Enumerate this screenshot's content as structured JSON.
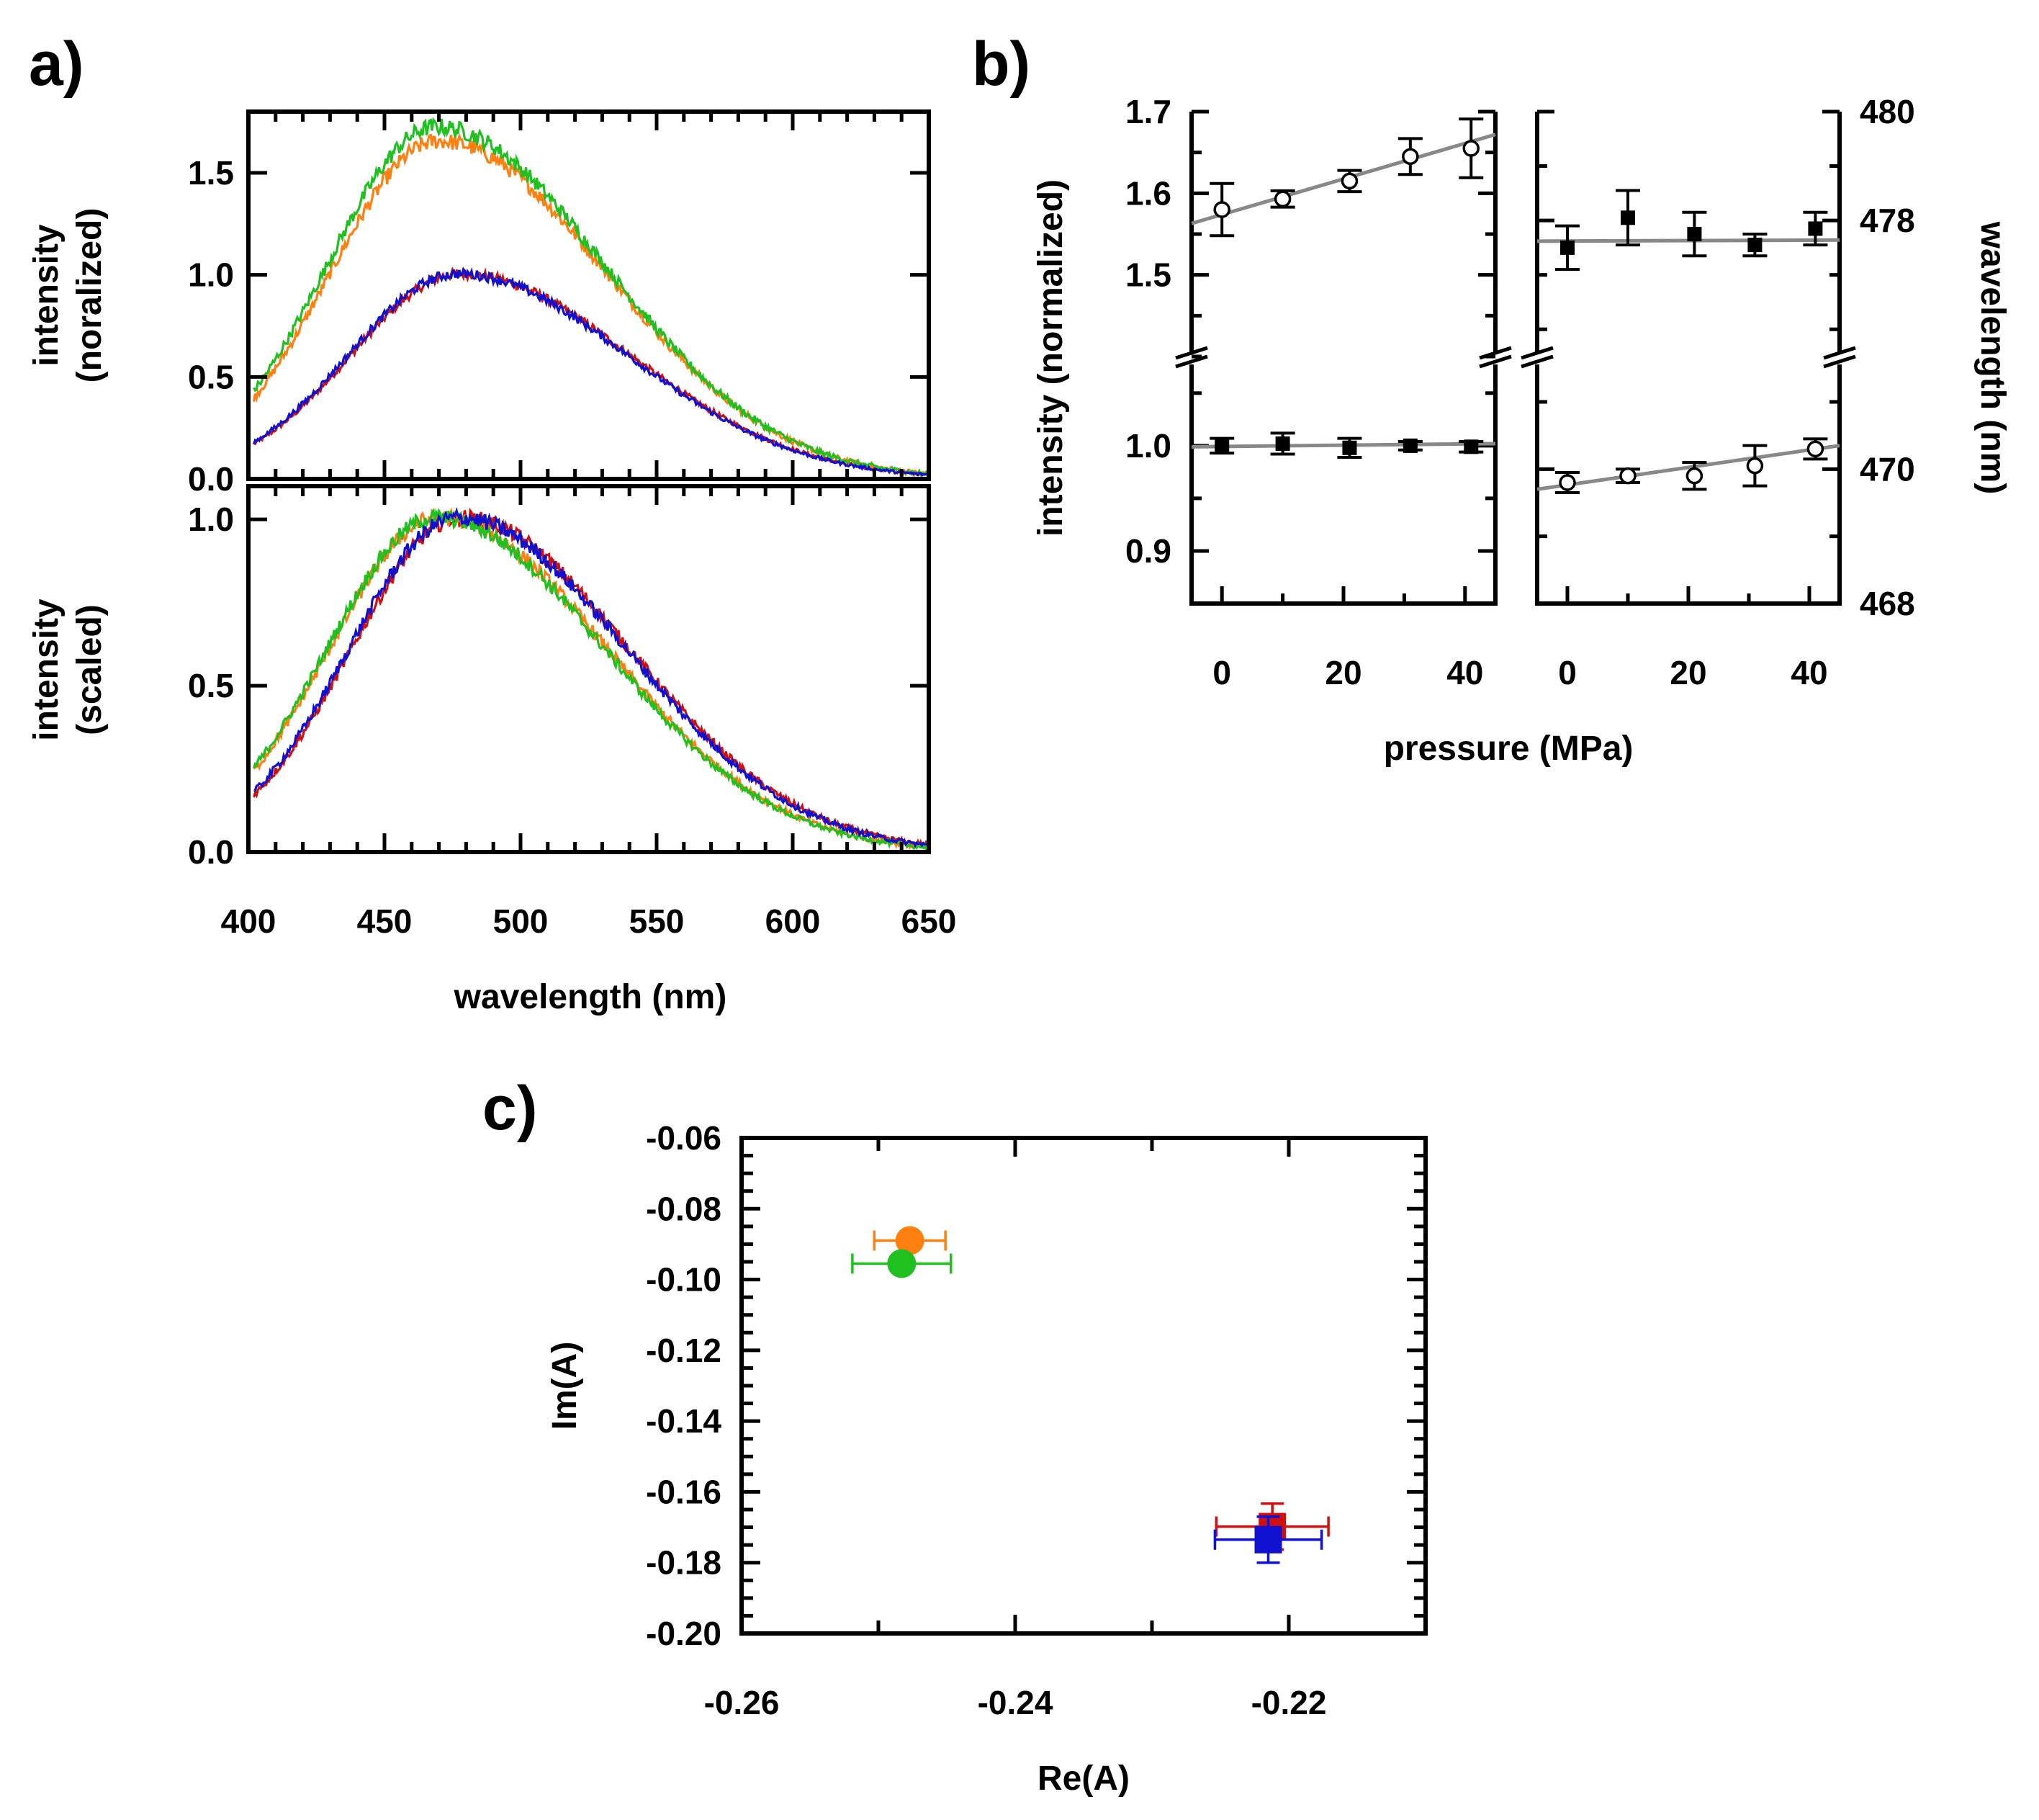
{
  "figure": {
    "panel_a_label": "a)",
    "panel_b_label": "b)",
    "panel_c_label": "c)"
  },
  "colors": {
    "red": "#d01010",
    "orange": "#ff8010",
    "green": "#20c020",
    "blue": "#1010d0",
    "fit": "#888888",
    "axis": "#000000"
  },
  "chart_data": [
    {
      "id": "a_top",
      "type": "line",
      "xlabel": "wavelength (nm)",
      "ylabel": [
        "intensity",
        "(noralized)"
      ],
      "xlim": [
        400,
        650
      ],
      "ylim": [
        0.0,
        1.8
      ],
      "xticks": [
        400,
        450,
        500,
        550,
        600,
        650
      ],
      "yticks": [
        "0.0",
        "0.5",
        "1.0",
        "1.5"
      ],
      "series": [
        {
          "name": "red",
          "color": "red",
          "peak_wavelength": 478,
          "peak_intensity": 1.0
        },
        {
          "name": "blue",
          "color": "blue",
          "peak_wavelength": 477,
          "peak_intensity": 1.0
        },
        {
          "name": "orange",
          "color": "orange",
          "peak_wavelength": 470,
          "peak_intensity": 1.65
        },
        {
          "name": "green",
          "color": "green",
          "peak_wavelength": 469,
          "peak_intensity": 1.72
        }
      ]
    },
    {
      "id": "a_bottom",
      "type": "line",
      "xlabel": "wavelength (nm)",
      "ylabel": [
        "intensity",
        "(scaled)"
      ],
      "xlim": [
        400,
        650
      ],
      "ylim": [
        0.0,
        1.1
      ],
      "xticks": [
        "400",
        "450",
        "500",
        "550",
        "600",
        "650"
      ],
      "yticks": [
        "0.0",
        "0.5",
        "1.0"
      ],
      "series": [
        {
          "name": "red",
          "color": "red",
          "peak_wavelength": 478,
          "peak_intensity": 1.0
        },
        {
          "name": "blue",
          "color": "blue",
          "peak_wavelength": 477,
          "peak_intensity": 1.0
        },
        {
          "name": "orange",
          "color": "orange",
          "peak_wavelength": 470,
          "peak_intensity": 1.0
        },
        {
          "name": "green",
          "color": "green",
          "peak_wavelength": 469,
          "peak_intensity": 1.0
        }
      ]
    },
    {
      "id": "b_left",
      "type": "scatter",
      "xlabel": "pressure (MPa)",
      "ylabel": "intensity (normalized)",
      "xlim": [
        -5,
        45
      ],
      "xticks": [
        "0",
        "20",
        "40"
      ],
      "y_upper": {
        "lim": [
          1.4,
          1.7
        ],
        "ticks": [
          "1.5",
          "1.6",
          "1.7"
        ]
      },
      "y_lower": {
        "lim": [
          0.85,
          1.08
        ],
        "ticks": [
          "0.9",
          "1.0"
        ]
      },
      "series": [
        {
          "name": "open circles",
          "marker": "circle-open",
          "segment": "upper",
          "x": [
            0,
            10,
            21,
            31,
            41
          ],
          "y": [
            1.58,
            1.593,
            1.615,
            1.645,
            1.655
          ],
          "err": [
            0.032,
            0.01,
            0.013,
            0.022,
            0.036
          ],
          "fit": {
            "x": [
              -5,
              45
            ],
            "y": [
              1.563,
              1.672
            ]
          }
        },
        {
          "name": "filled squares",
          "marker": "square-filled",
          "segment": "lower",
          "x": [
            0,
            10,
            21,
            31,
            41
          ],
          "y": [
            1.0,
            1.002,
            0.998,
            1.0,
            0.999
          ],
          "err": [
            0.007,
            0.01,
            0.009,
            0.004,
            0.005
          ],
          "fit": {
            "x": [
              -5,
              45
            ],
            "y": [
              0.999,
              1.002
            ]
          }
        }
      ]
    },
    {
      "id": "b_right",
      "type": "scatter",
      "xlabel": "pressure (MPa)",
      "ylabel": "wavelength (nm)",
      "xlim": [
        -5,
        45
      ],
      "xticks": [
        "0",
        "20",
        "40"
      ],
      "y_upper": {
        "lim": [
          475.5,
          480
        ],
        "ticks": [
          "478",
          "480"
        ]
      },
      "y_lower": {
        "lim": [
          468,
          471.6
        ],
        "ticks": [
          "468",
          "470"
        ]
      },
      "series": [
        {
          "name": "filled squares",
          "marker": "square-filled",
          "segment": "upper",
          "x": [
            0,
            10,
            21,
            31,
            41
          ],
          "y": [
            477.5,
            478.05,
            477.75,
            477.55,
            477.85
          ],
          "err": [
            0.4,
            0.5,
            0.4,
            0.2,
            0.3
          ],
          "fit": {
            "x": [
              -5,
              45
            ],
            "y": [
              477.62,
              477.64
            ]
          }
        },
        {
          "name": "open circles",
          "marker": "circle-open",
          "segment": "lower",
          "x": [
            0,
            10,
            21,
            31,
            41
          ],
          "y": [
            469.8,
            469.9,
            469.9,
            470.05,
            470.3
          ],
          "err": [
            0.15,
            0.1,
            0.2,
            0.3,
            0.15
          ],
          "fit": {
            "x": [
              -5,
              45
            ],
            "y": [
              469.7,
              470.35
            ]
          }
        }
      ]
    },
    {
      "id": "c",
      "type": "scatter",
      "xlabel": "Re(A)",
      "ylabel": "Im(A)",
      "xlim": [
        -0.26,
        -0.21
      ],
      "ylim": [
        -0.2,
        -0.06
      ],
      "xticks": [
        "-0.26",
        "-0.24",
        "-0.22"
      ],
      "yticks": [
        "-0.06",
        "-0.08",
        "-0.10",
        "-0.12",
        "-0.14",
        "-0.16",
        "-0.18",
        "-0.20"
      ],
      "points": [
        {
          "name": "orange",
          "marker": "circle",
          "color": "orange",
          "x": -0.2477,
          "y": -0.089,
          "xerr": 0.0026,
          "yerr": 0.0
        },
        {
          "name": "green",
          "marker": "circle",
          "color": "green",
          "x": -0.2483,
          "y": -0.0955,
          "xerr": 0.0036,
          "yerr": 0.0
        },
        {
          "name": "red",
          "marker": "square",
          "color": "red",
          "x": -0.2212,
          "y": -0.1698,
          "xerr": 0.0041,
          "yerr": 0.0065
        },
        {
          "name": "blue",
          "marker": "square",
          "color": "blue",
          "x": -0.2215,
          "y": -0.1735,
          "xerr": 0.0039,
          "yerr": 0.0065
        }
      ]
    }
  ]
}
